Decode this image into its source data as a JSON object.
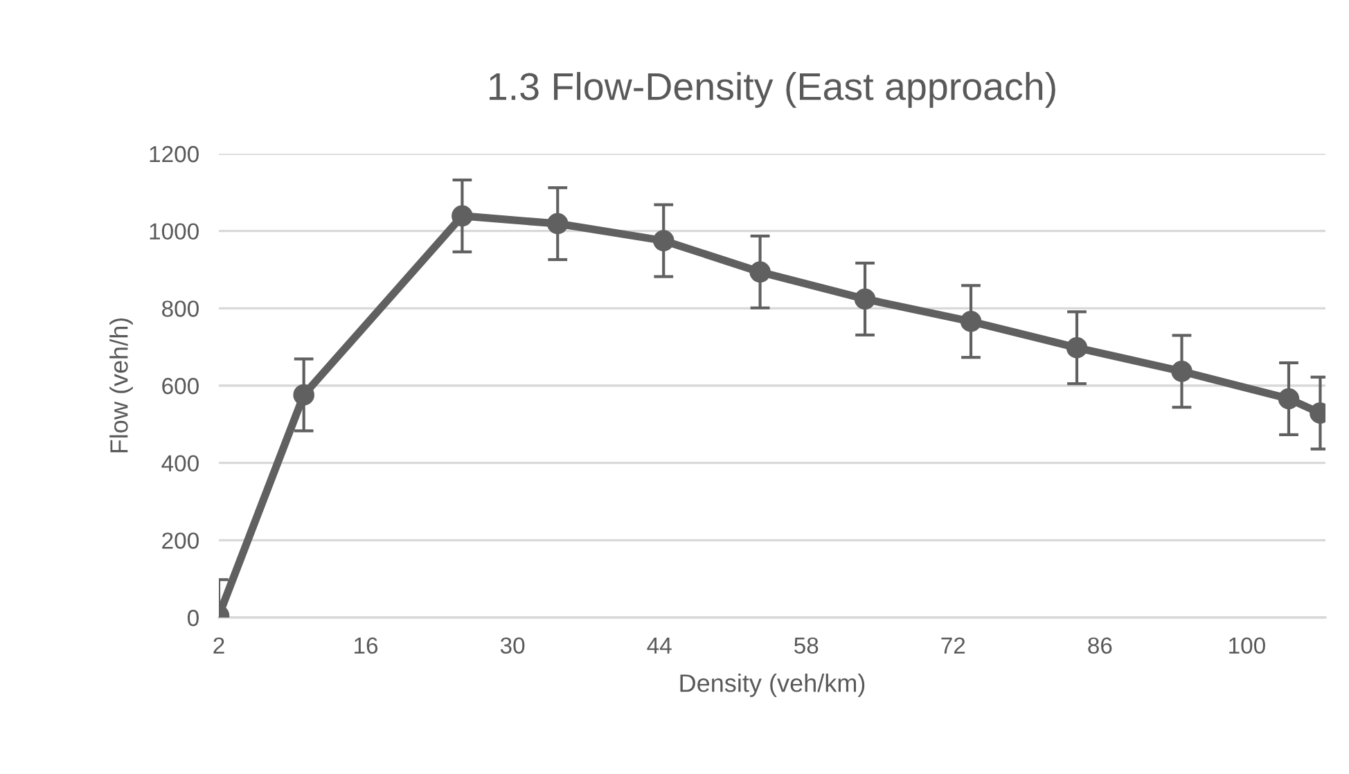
{
  "chart_data": {
    "type": "line",
    "title": "1.3 Flow-Density (East approach)",
    "xlabel": "Density (veh/km)",
    "ylabel": "Flow (veh/h)",
    "x": [
      2,
      10.1,
      25.2,
      34.3,
      44.4,
      53.6,
      63.6,
      73.7,
      83.8,
      93.8,
      104,
      107
    ],
    "series": [
      {
        "color": "#606060",
        "values": [
          5,
          576,
          1039,
          1019,
          975,
          894,
          824,
          766,
          698,
          637,
          566,
          529
        ],
        "errors": [
          93,
          93,
          93,
          93,
          93,
          93,
          93,
          93,
          93,
          93,
          93,
          93
        ]
      }
    ],
    "xlim": [
      2,
      107.5
    ],
    "xticks": [
      2,
      16,
      30,
      44,
      58,
      72,
      86,
      100
    ],
    "ylim": [
      0,
      1200
    ],
    "yticks": [
      0,
      200,
      400,
      600,
      800,
      1000,
      1200
    ],
    "grid": "y",
    "marker": "circle",
    "line_style": "solid",
    "legend": false
  }
}
